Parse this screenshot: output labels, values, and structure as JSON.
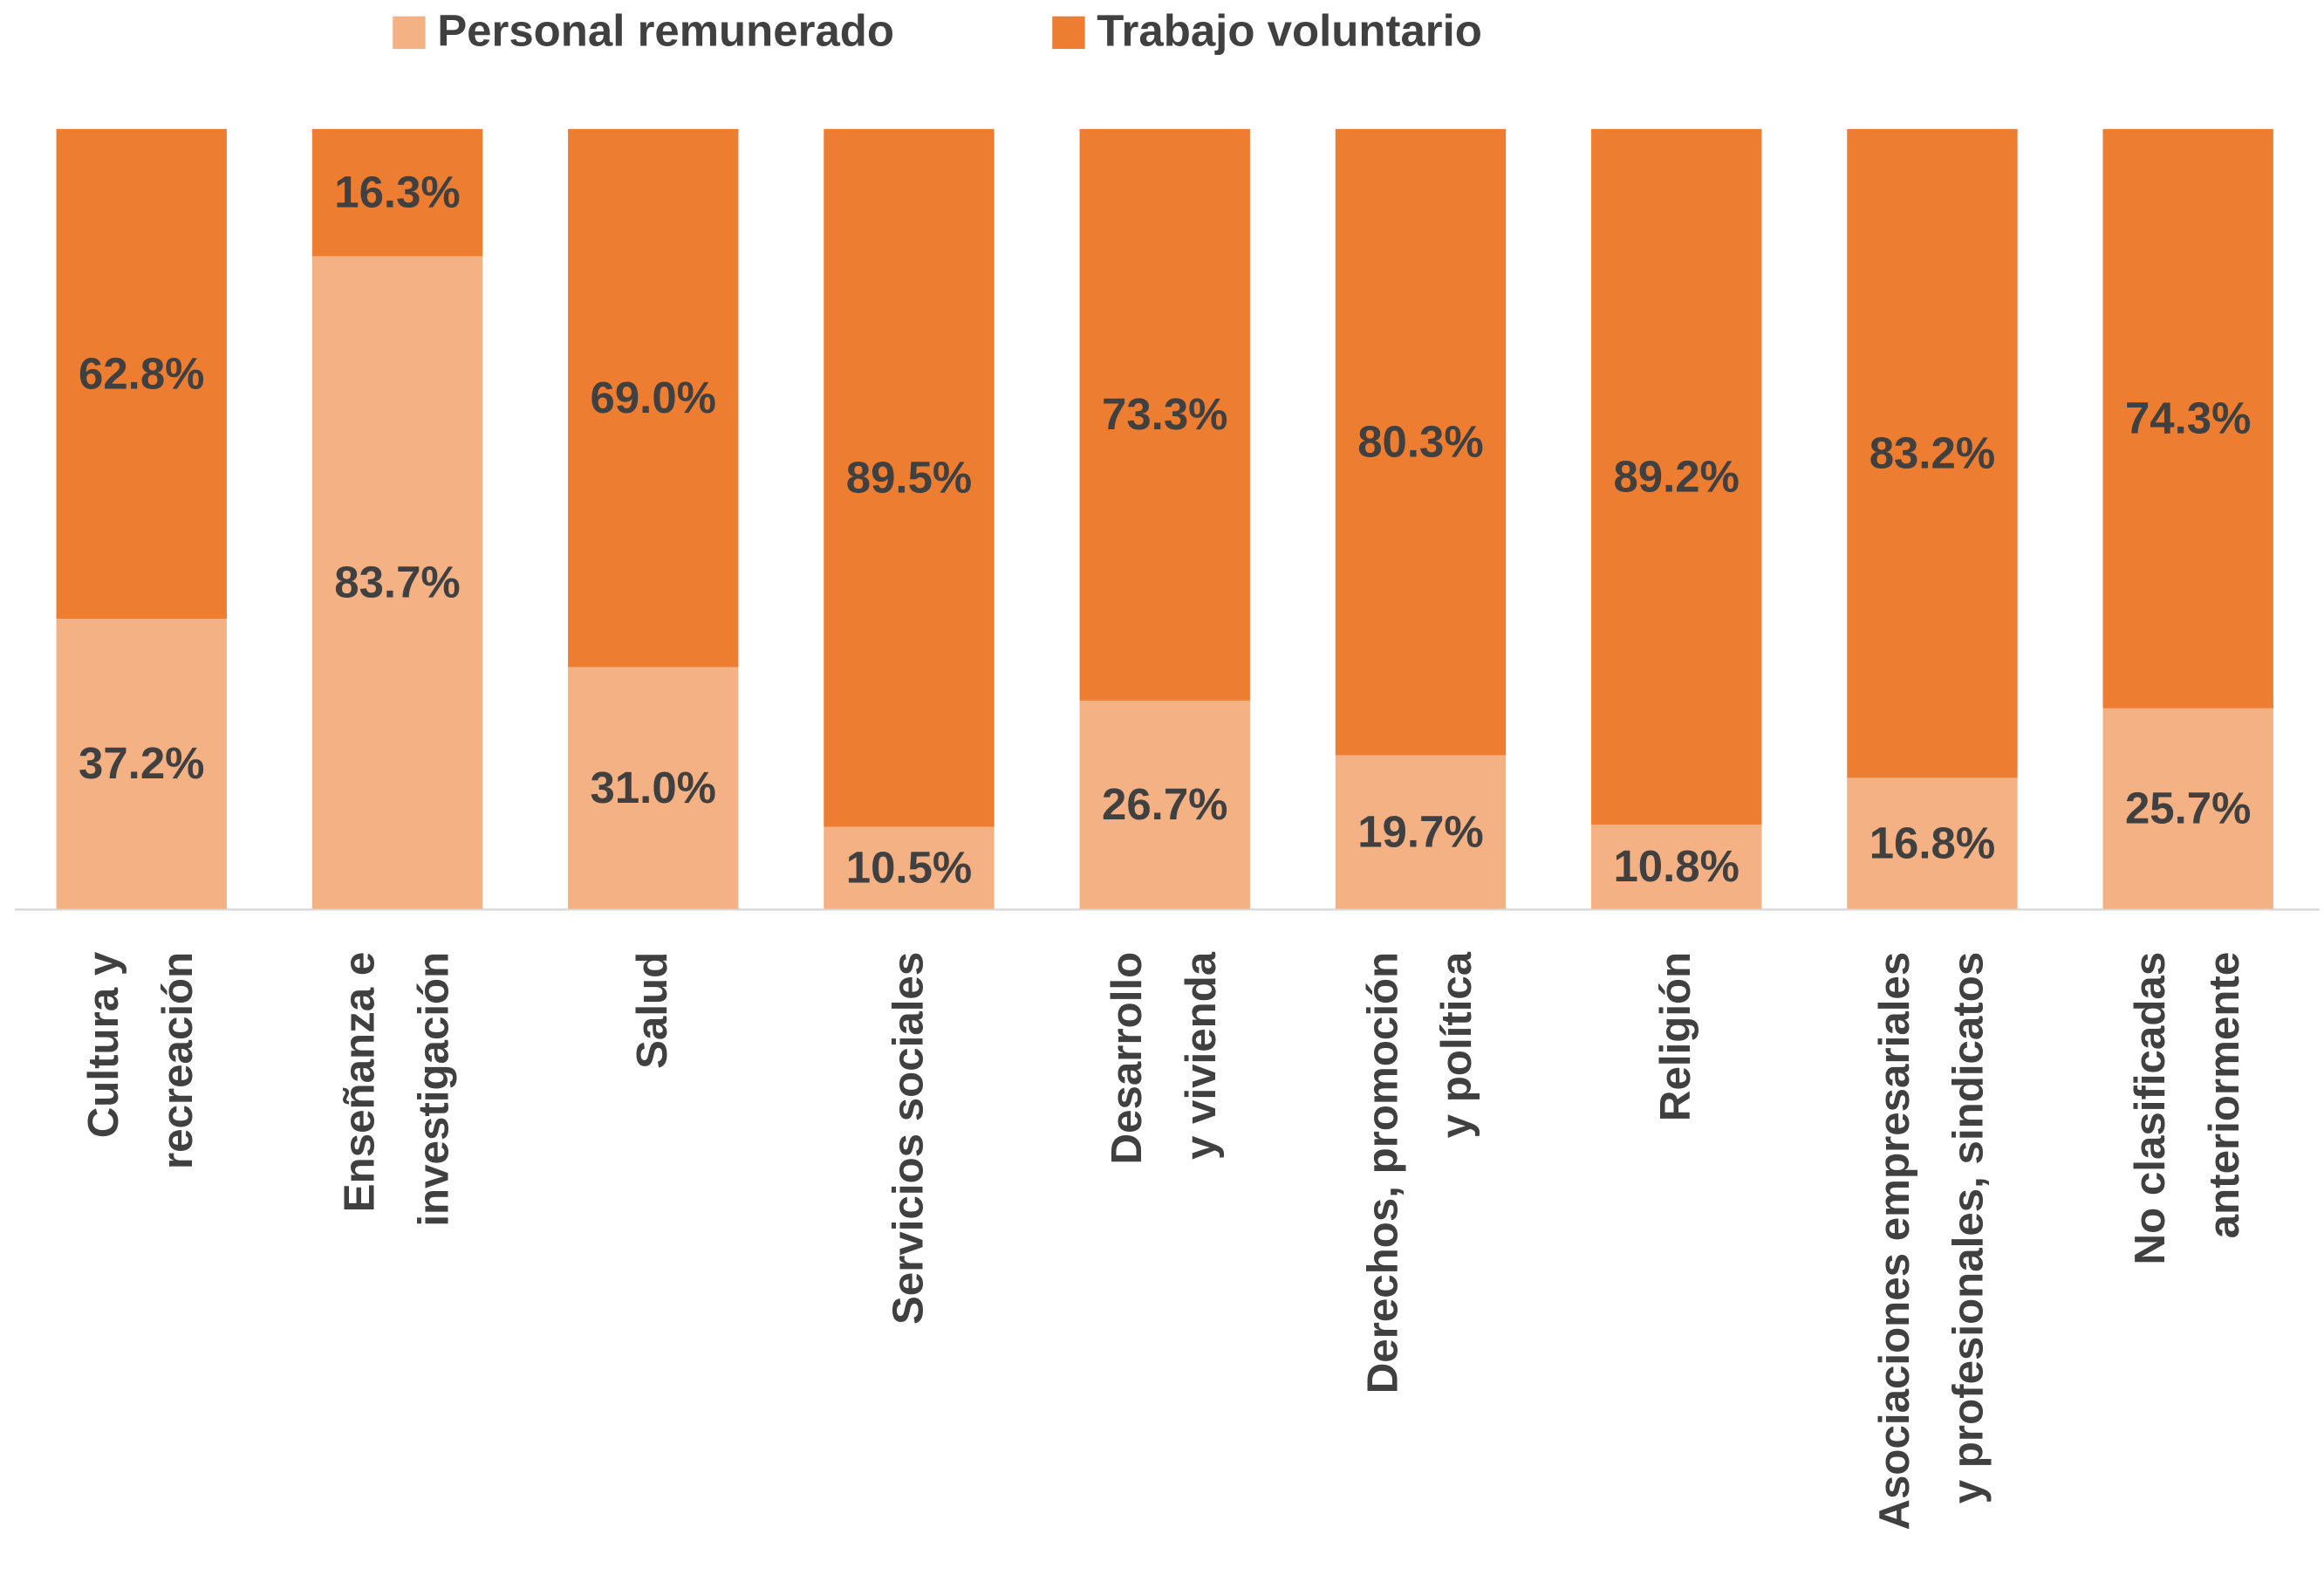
{
  "chart_data": {
    "type": "stacked_bar",
    "categories": [
      "Cultura y\nrecreación",
      "Enseñanza e\ninvestigación",
      "Salud",
      "Servicios sociales",
      "Desarrollo\ny vivienda",
      "Derechos, promoción\ny política",
      "Religión",
      "Asociaciones empresariales\ny profesionales, sindicatos",
      "No clasificadas\nanteriormente"
    ],
    "series": [
      {
        "name": "Personal remunerado",
        "color": "#F4B183",
        "values": [
          37.2,
          83.7,
          31.0,
          10.5,
          26.7,
          19.7,
          10.8,
          16.8,
          25.7
        ],
        "value_labels": [
          "37.2%",
          "83.7%",
          "31.0%",
          "10.5%",
          "26.7%",
          "19.7%",
          "10.8%",
          "16.8%",
          "25.7%"
        ]
      },
      {
        "name": "Trabajo voluntario",
        "color": "#ED7D31",
        "values": [
          62.8,
          16.3,
          69.0,
          89.5,
          73.3,
          80.3,
          89.2,
          83.2,
          74.3
        ],
        "value_labels": [
          "62.8%",
          "16.3%",
          "69.0%",
          "89.5%",
          "73.3%",
          "80.3%",
          "89.2%",
          "83.2%",
          "74.3%"
        ]
      }
    ],
    "ylim": [
      0,
      100
    ]
  }
}
